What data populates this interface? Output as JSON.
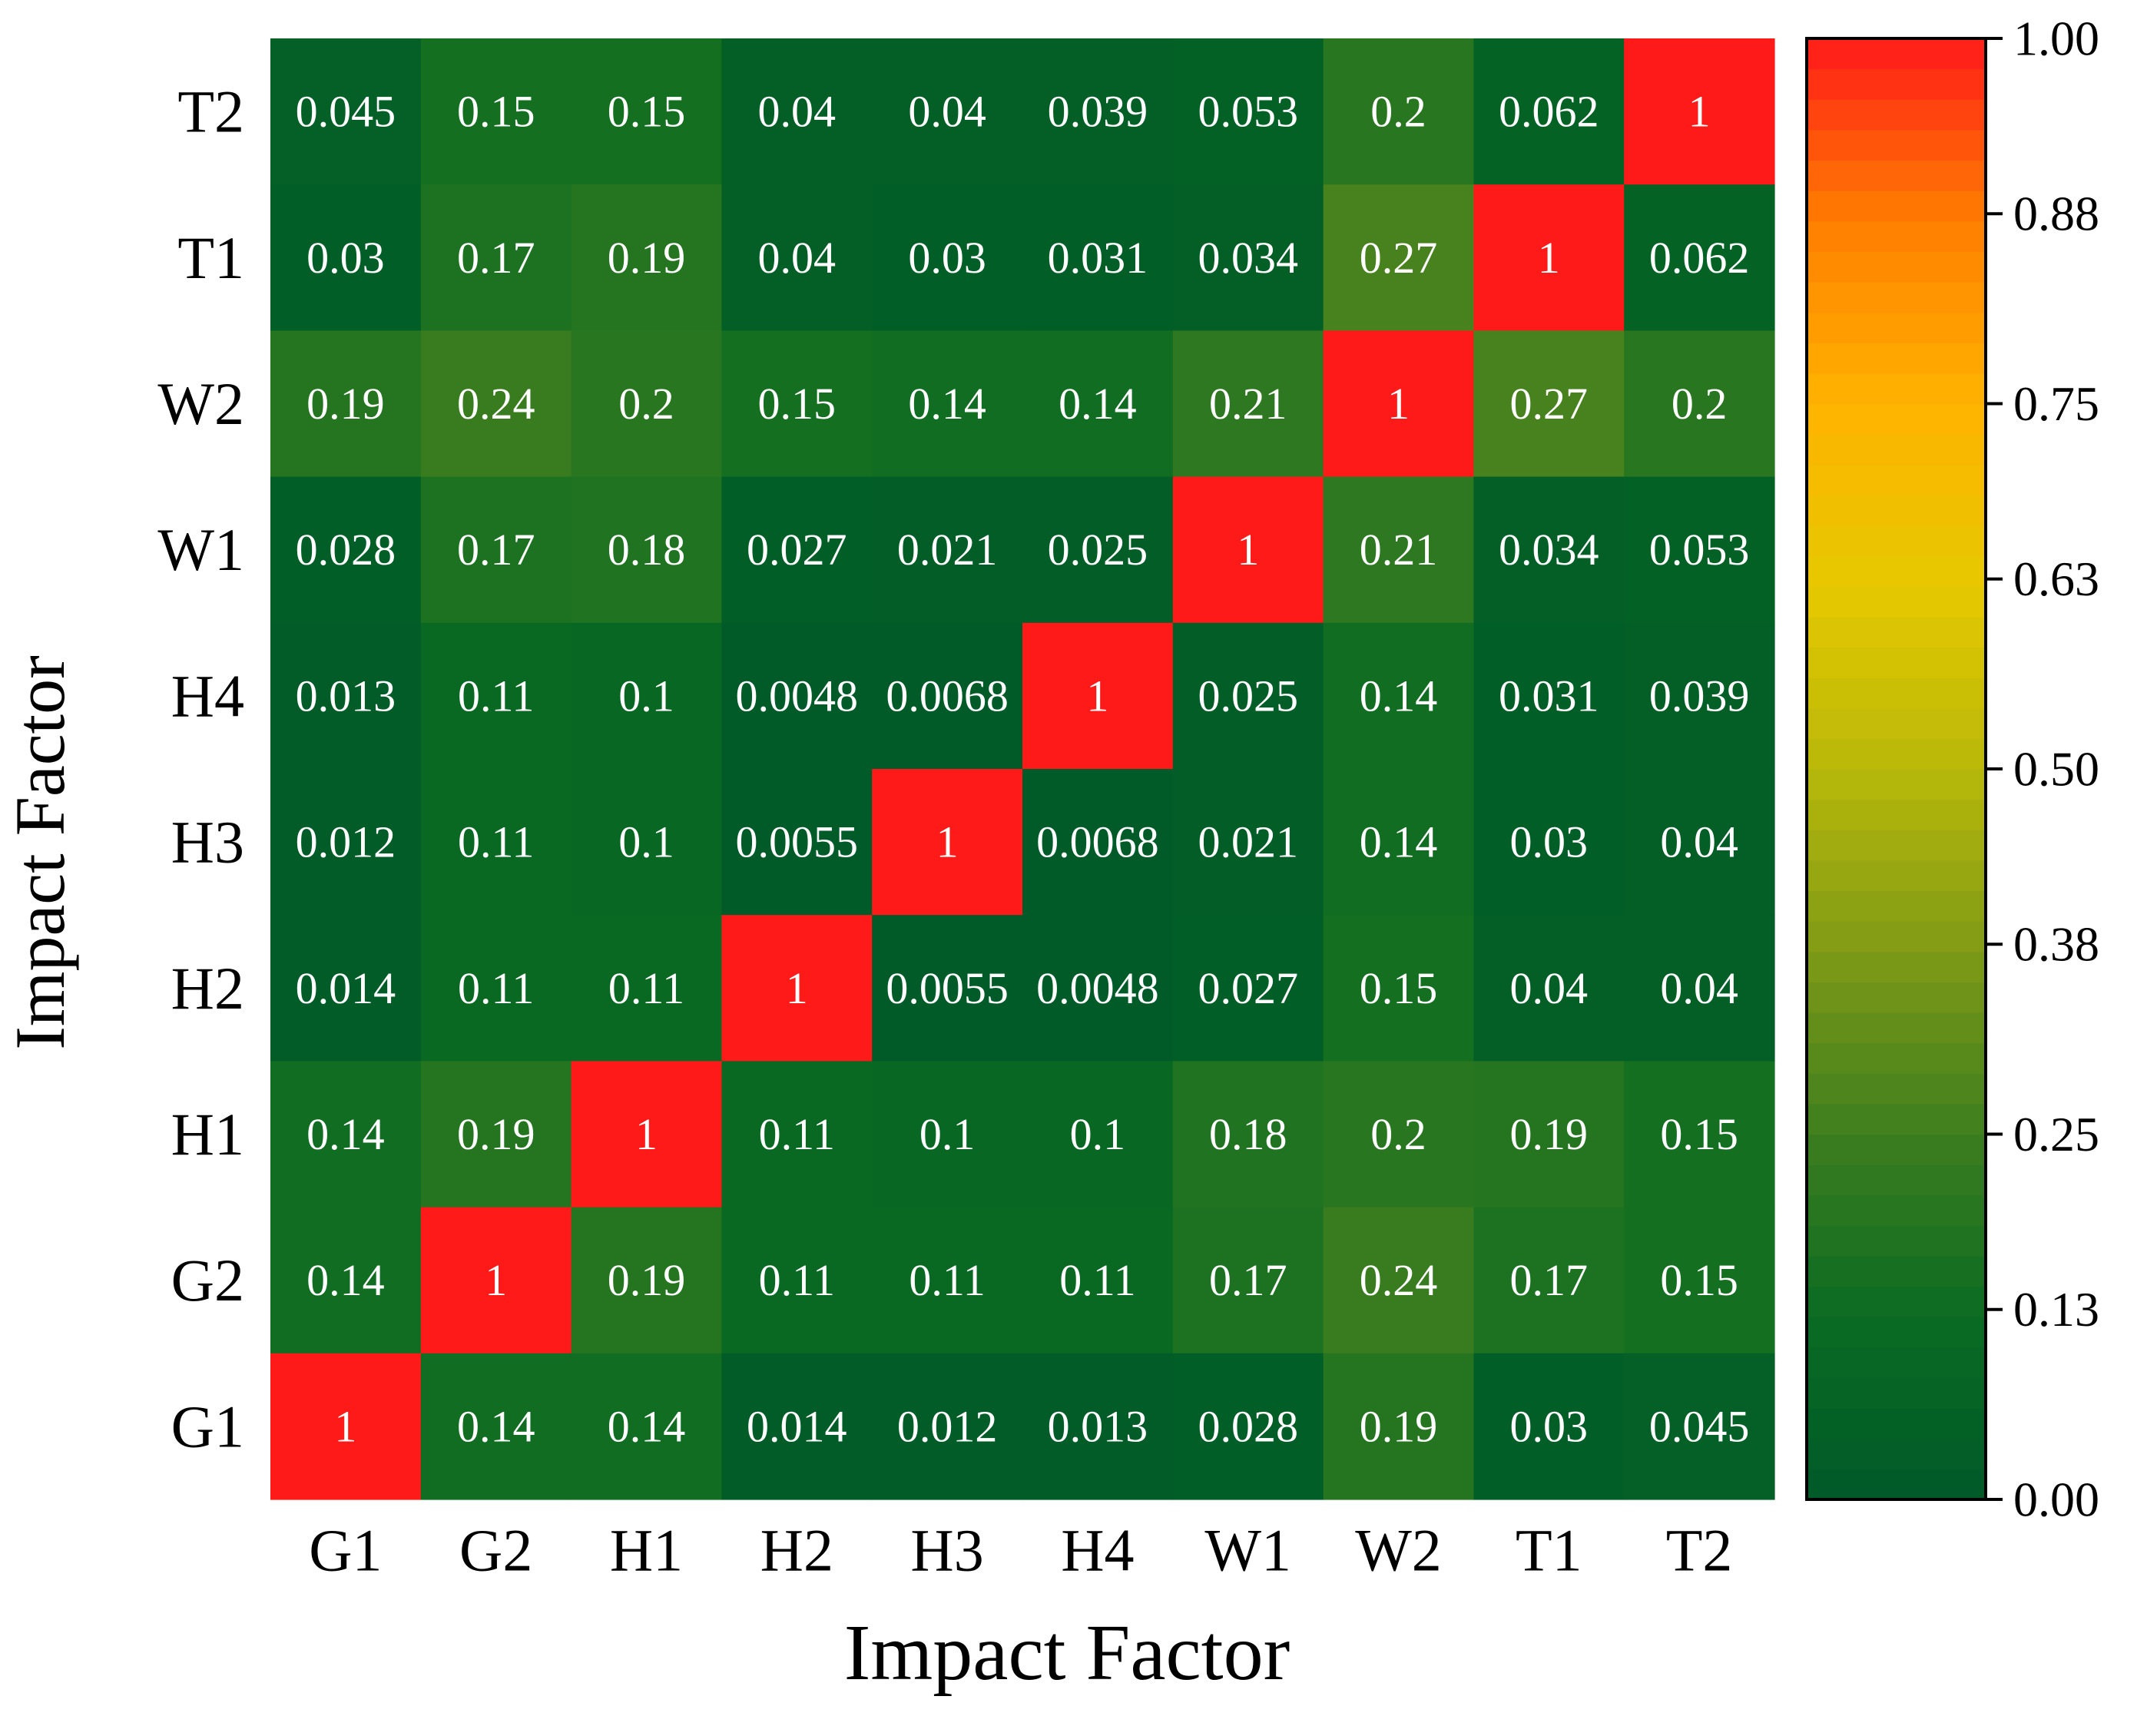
{
  "chart_data": {
    "type": "heatmap",
    "title": "",
    "xlabel": "Impact Factor",
    "ylabel": "Impact Factor",
    "x_categories": [
      "G1",
      "G2",
      "H1",
      "H2",
      "H3",
      "H4",
      "W1",
      "W2",
      "T1",
      "T2"
    ],
    "y_categories_top_to_bottom": [
      "T2",
      "T1",
      "W2",
      "W1",
      "H4",
      "H3",
      "H2",
      "H1",
      "G2",
      "G1"
    ],
    "matrix_top_to_bottom": [
      [
        "0.045",
        "0.15",
        "0.15",
        "0.04",
        "0.04",
        "0.039",
        "0.053",
        "0.2",
        "0.062",
        "1"
      ],
      [
        "0.03",
        "0.17",
        "0.19",
        "0.04",
        "0.03",
        "0.031",
        "0.034",
        "0.27",
        "1",
        "0.062"
      ],
      [
        "0.19",
        "0.24",
        "0.2",
        "0.15",
        "0.14",
        "0.14",
        "0.21",
        "1",
        "0.27",
        "0.2"
      ],
      [
        "0.028",
        "0.17",
        "0.18",
        "0.027",
        "0.021",
        "0.025",
        "1",
        "0.21",
        "0.034",
        "0.053"
      ],
      [
        "0.013",
        "0.11",
        "0.1",
        "0.0048",
        "0.0068",
        "1",
        "0.025",
        "0.14",
        "0.031",
        "0.039"
      ],
      [
        "0.012",
        "0.11",
        "0.1",
        "0.0055",
        "1",
        "0.0068",
        "0.021",
        "0.14",
        "0.03",
        "0.04"
      ],
      [
        "0.014",
        "0.11",
        "0.11",
        "1",
        "0.0055",
        "0.0048",
        "0.027",
        "0.15",
        "0.04",
        "0.04"
      ],
      [
        "0.14",
        "0.19",
        "1",
        "0.11",
        "0.1",
        "0.1",
        "0.18",
        "0.2",
        "0.19",
        "0.15"
      ],
      [
        "0.14",
        "1",
        "0.19",
        "0.11",
        "0.11",
        "0.11",
        "0.17",
        "0.24",
        "0.17",
        "0.15"
      ],
      [
        "1",
        "0.14",
        "0.14",
        "0.014",
        "0.012",
        "0.013",
        "0.028",
        "0.19",
        "0.03",
        "0.045"
      ]
    ],
    "colorbar": {
      "range": [
        0,
        1
      ],
      "ticks": [
        "0.00",
        "0.13",
        "0.25",
        "0.38",
        "0.50",
        "0.63",
        "0.75",
        "0.88",
        "1.00"
      ],
      "colors": [
        "#005a28",
        "#0a6b22",
        "#3d7e1f",
        "#7f9a16",
        "#b8b80a",
        "#e6c800",
        "#ffb300",
        "#ff7f00",
        "#ff1a1a"
      ]
    },
    "legend_position": "right",
    "grid": false
  }
}
